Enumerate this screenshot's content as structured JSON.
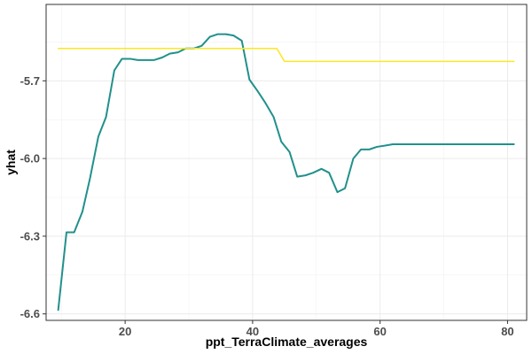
{
  "chart_data": {
    "type": "line",
    "xlabel": "ppt_TerraClimate_averages",
    "ylabel": "yhat",
    "xlim": [
      7.6,
      83.0
    ],
    "ylim": [
      -6.625,
      -5.405
    ],
    "x_ticks": [
      20,
      40,
      60,
      80
    ],
    "x_minor_ticks": [
      10,
      30,
      50,
      70
    ],
    "y_ticks": [
      -6.6,
      -6.3,
      -6.0,
      -5.7
    ],
    "y_tick_labels": [
      "-6.6",
      "-6.3",
      "-6.0",
      "-5.7"
    ],
    "y_minor_ticks": [
      -6.45,
      -6.15,
      -5.85,
      -5.55
    ],
    "grid": true,
    "background": "white",
    "series": [
      {
        "color": "#21908c",
        "points": [
          [
            9.5,
            -6.585
          ],
          [
            10.8,
            -6.285
          ],
          [
            12.0,
            -6.285
          ],
          [
            13.3,
            -6.205
          ],
          [
            14.5,
            -6.075
          ],
          [
            15.8,
            -5.915
          ],
          [
            17.0,
            -5.84
          ],
          [
            18.3,
            -5.66
          ],
          [
            19.5,
            -5.615
          ],
          [
            20.8,
            -5.615
          ],
          [
            22.0,
            -5.62
          ],
          [
            23.3,
            -5.62
          ],
          [
            24.5,
            -5.62
          ],
          [
            25.8,
            -5.61
          ],
          [
            27.0,
            -5.595
          ],
          [
            28.3,
            -5.59
          ],
          [
            29.5,
            -5.575
          ],
          [
            30.8,
            -5.575
          ],
          [
            32.0,
            -5.565
          ],
          [
            33.3,
            -5.53
          ],
          [
            34.5,
            -5.52
          ],
          [
            35.8,
            -5.52
          ],
          [
            37.0,
            -5.525
          ],
          [
            38.3,
            -5.545
          ],
          [
            39.5,
            -5.695
          ],
          [
            40.8,
            -5.74
          ],
          [
            42.0,
            -5.785
          ],
          [
            43.3,
            -5.84
          ],
          [
            44.5,
            -5.935
          ],
          [
            45.8,
            -5.975
          ],
          [
            47.0,
            -6.07
          ],
          [
            48.3,
            -6.065
          ],
          [
            49.5,
            -6.055
          ],
          [
            50.8,
            -6.04
          ],
          [
            52.0,
            -6.055
          ],
          [
            53.3,
            -6.13
          ],
          [
            54.5,
            -6.115
          ],
          [
            55.8,
            -6.0
          ],
          [
            57.0,
            -5.965
          ],
          [
            58.3,
            -5.965
          ],
          [
            59.5,
            -5.955
          ],
          [
            60.8,
            -5.95
          ],
          [
            62.0,
            -5.945
          ],
          [
            66.0,
            -5.945
          ],
          [
            70.0,
            -5.945
          ],
          [
            75.0,
            -5.945
          ],
          [
            81.0,
            -5.945
          ]
        ]
      },
      {
        "color": "#fde725",
        "points": [
          [
            9.5,
            -5.575
          ],
          [
            20.0,
            -5.575
          ],
          [
            30.0,
            -5.575
          ],
          [
            38.0,
            -5.575
          ],
          [
            43.8,
            -5.575
          ],
          [
            45.0,
            -5.625
          ],
          [
            50.0,
            -5.625
          ],
          [
            60.0,
            -5.625
          ],
          [
            70.0,
            -5.625
          ],
          [
            81.0,
            -5.625
          ]
        ]
      }
    ]
  }
}
